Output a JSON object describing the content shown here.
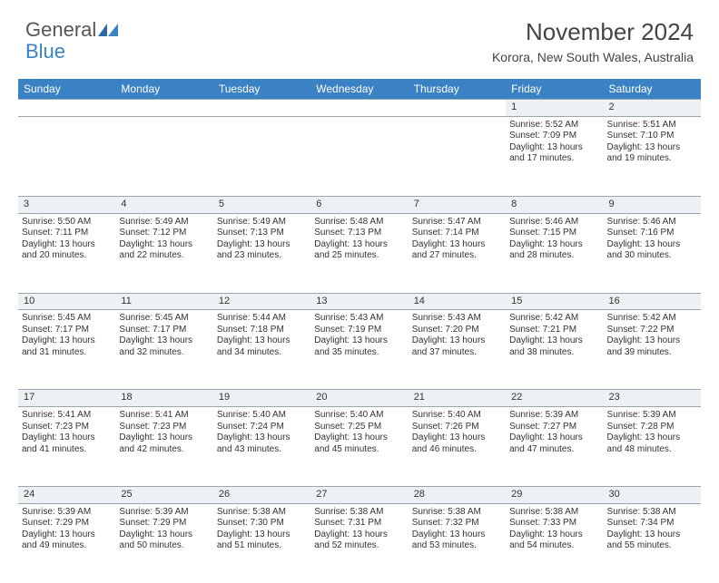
{
  "brand": {
    "part1": "General",
    "part2": "Blue"
  },
  "title": "November 2024",
  "location": "Korora, New South Wales, Australia",
  "colors": {
    "header_bg": "#3b82c4",
    "header_text": "#ffffff",
    "daynum_bg": "#eef1f3",
    "border": "#9aa6b2",
    "text": "#333333",
    "page_bg": "#ffffff"
  },
  "day_headers": [
    "Sunday",
    "Monday",
    "Tuesday",
    "Wednesday",
    "Thursday",
    "Friday",
    "Saturday"
  ],
  "weeks": [
    {
      "nums": [
        "",
        "",
        "",
        "",
        "",
        "1",
        "2"
      ],
      "cells": [
        null,
        null,
        null,
        null,
        null,
        {
          "sunrise": "Sunrise: 5:52 AM",
          "sunset": "Sunset: 7:09 PM",
          "day1": "Daylight: 13 hours",
          "day2": "and 17 minutes."
        },
        {
          "sunrise": "Sunrise: 5:51 AM",
          "sunset": "Sunset: 7:10 PM",
          "day1": "Daylight: 13 hours",
          "day2": "and 19 minutes."
        }
      ]
    },
    {
      "nums": [
        "3",
        "4",
        "5",
        "6",
        "7",
        "8",
        "9"
      ],
      "cells": [
        {
          "sunrise": "Sunrise: 5:50 AM",
          "sunset": "Sunset: 7:11 PM",
          "day1": "Daylight: 13 hours",
          "day2": "and 20 minutes."
        },
        {
          "sunrise": "Sunrise: 5:49 AM",
          "sunset": "Sunset: 7:12 PM",
          "day1": "Daylight: 13 hours",
          "day2": "and 22 minutes."
        },
        {
          "sunrise": "Sunrise: 5:49 AM",
          "sunset": "Sunset: 7:13 PM",
          "day1": "Daylight: 13 hours",
          "day2": "and 23 minutes."
        },
        {
          "sunrise": "Sunrise: 5:48 AM",
          "sunset": "Sunset: 7:13 PM",
          "day1": "Daylight: 13 hours",
          "day2": "and 25 minutes."
        },
        {
          "sunrise": "Sunrise: 5:47 AM",
          "sunset": "Sunset: 7:14 PM",
          "day1": "Daylight: 13 hours",
          "day2": "and 27 minutes."
        },
        {
          "sunrise": "Sunrise: 5:46 AM",
          "sunset": "Sunset: 7:15 PM",
          "day1": "Daylight: 13 hours",
          "day2": "and 28 minutes."
        },
        {
          "sunrise": "Sunrise: 5:46 AM",
          "sunset": "Sunset: 7:16 PM",
          "day1": "Daylight: 13 hours",
          "day2": "and 30 minutes."
        }
      ]
    },
    {
      "nums": [
        "10",
        "11",
        "12",
        "13",
        "14",
        "15",
        "16"
      ],
      "cells": [
        {
          "sunrise": "Sunrise: 5:45 AM",
          "sunset": "Sunset: 7:17 PM",
          "day1": "Daylight: 13 hours",
          "day2": "and 31 minutes."
        },
        {
          "sunrise": "Sunrise: 5:45 AM",
          "sunset": "Sunset: 7:17 PM",
          "day1": "Daylight: 13 hours",
          "day2": "and 32 minutes."
        },
        {
          "sunrise": "Sunrise: 5:44 AM",
          "sunset": "Sunset: 7:18 PM",
          "day1": "Daylight: 13 hours",
          "day2": "and 34 minutes."
        },
        {
          "sunrise": "Sunrise: 5:43 AM",
          "sunset": "Sunset: 7:19 PM",
          "day1": "Daylight: 13 hours",
          "day2": "and 35 minutes."
        },
        {
          "sunrise": "Sunrise: 5:43 AM",
          "sunset": "Sunset: 7:20 PM",
          "day1": "Daylight: 13 hours",
          "day2": "and 37 minutes."
        },
        {
          "sunrise": "Sunrise: 5:42 AM",
          "sunset": "Sunset: 7:21 PM",
          "day1": "Daylight: 13 hours",
          "day2": "and 38 minutes."
        },
        {
          "sunrise": "Sunrise: 5:42 AM",
          "sunset": "Sunset: 7:22 PM",
          "day1": "Daylight: 13 hours",
          "day2": "and 39 minutes."
        }
      ]
    },
    {
      "nums": [
        "17",
        "18",
        "19",
        "20",
        "21",
        "22",
        "23"
      ],
      "cells": [
        {
          "sunrise": "Sunrise: 5:41 AM",
          "sunset": "Sunset: 7:23 PM",
          "day1": "Daylight: 13 hours",
          "day2": "and 41 minutes."
        },
        {
          "sunrise": "Sunrise: 5:41 AM",
          "sunset": "Sunset: 7:23 PM",
          "day1": "Daylight: 13 hours",
          "day2": "and 42 minutes."
        },
        {
          "sunrise": "Sunrise: 5:40 AM",
          "sunset": "Sunset: 7:24 PM",
          "day1": "Daylight: 13 hours",
          "day2": "and 43 minutes."
        },
        {
          "sunrise": "Sunrise: 5:40 AM",
          "sunset": "Sunset: 7:25 PM",
          "day1": "Daylight: 13 hours",
          "day2": "and 45 minutes."
        },
        {
          "sunrise": "Sunrise: 5:40 AM",
          "sunset": "Sunset: 7:26 PM",
          "day1": "Daylight: 13 hours",
          "day2": "and 46 minutes."
        },
        {
          "sunrise": "Sunrise: 5:39 AM",
          "sunset": "Sunset: 7:27 PM",
          "day1": "Daylight: 13 hours",
          "day2": "and 47 minutes."
        },
        {
          "sunrise": "Sunrise: 5:39 AM",
          "sunset": "Sunset: 7:28 PM",
          "day1": "Daylight: 13 hours",
          "day2": "and 48 minutes."
        }
      ]
    },
    {
      "nums": [
        "24",
        "25",
        "26",
        "27",
        "28",
        "29",
        "30"
      ],
      "cells": [
        {
          "sunrise": "Sunrise: 5:39 AM",
          "sunset": "Sunset: 7:29 PM",
          "day1": "Daylight: 13 hours",
          "day2": "and 49 minutes."
        },
        {
          "sunrise": "Sunrise: 5:39 AM",
          "sunset": "Sunset: 7:29 PM",
          "day1": "Daylight: 13 hours",
          "day2": "and 50 minutes."
        },
        {
          "sunrise": "Sunrise: 5:38 AM",
          "sunset": "Sunset: 7:30 PM",
          "day1": "Daylight: 13 hours",
          "day2": "and 51 minutes."
        },
        {
          "sunrise": "Sunrise: 5:38 AM",
          "sunset": "Sunset: 7:31 PM",
          "day1": "Daylight: 13 hours",
          "day2": "and 52 minutes."
        },
        {
          "sunrise": "Sunrise: 5:38 AM",
          "sunset": "Sunset: 7:32 PM",
          "day1": "Daylight: 13 hours",
          "day2": "and 53 minutes."
        },
        {
          "sunrise": "Sunrise: 5:38 AM",
          "sunset": "Sunset: 7:33 PM",
          "day1": "Daylight: 13 hours",
          "day2": "and 54 minutes."
        },
        {
          "sunrise": "Sunrise: 5:38 AM",
          "sunset": "Sunset: 7:34 PM",
          "day1": "Daylight: 13 hours",
          "day2": "and 55 minutes."
        }
      ]
    }
  ]
}
